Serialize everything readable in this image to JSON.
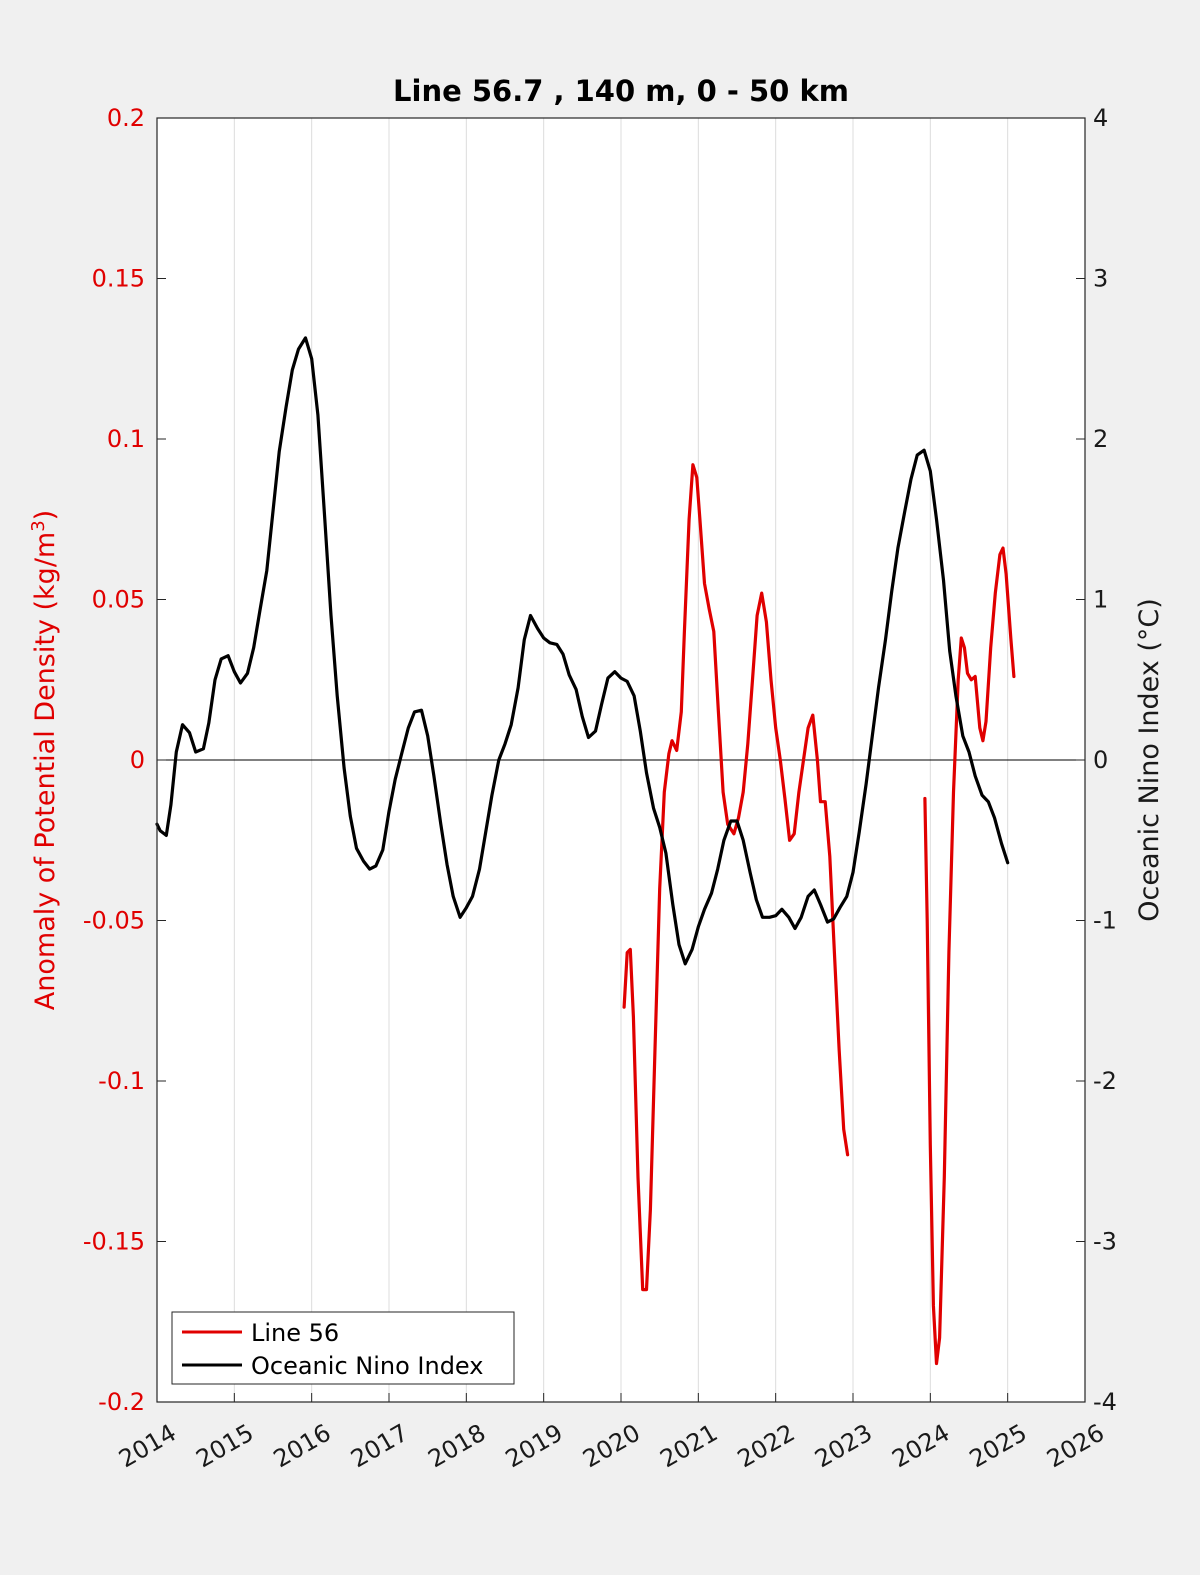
{
  "chart_data": {
    "type": "line",
    "title": "Line 56.7 , 140 m, 0 - 50 km",
    "ylabel_left": "Anomaly of Potential Density (kg/m3)",
    "ylabel_left_parts": {
      "pre": "Anomaly of Potential Density (kg/m",
      "sup": "3",
      "post": ")"
    },
    "ylabel_right": "Oceanic Nino Index (°C)",
    "xlabel": "",
    "xlim": [
      2014,
      2026
    ],
    "ylim_left": [
      -0.2,
      0.2
    ],
    "ylim_right": [
      -4,
      4
    ],
    "x_ticks": [
      "2014",
      "2015",
      "2016",
      "2017",
      "2018",
      "2019",
      "2020",
      "2021",
      "2022",
      "2023",
      "2024",
      "2025",
      "2026"
    ],
    "y_ticks_left": [
      "0.2",
      "0.15",
      "0.1",
      "0.05",
      "0",
      "-0.05",
      "-0.1",
      "-0.15",
      "-0.2"
    ],
    "y_ticks_right": [
      "4",
      "3",
      "2",
      "1",
      "0",
      "-1",
      "-2",
      "-3",
      "-4"
    ],
    "grid": "vertical",
    "zero_line": true,
    "legend_position": "bottom-left",
    "colors": {
      "density": "#e00000",
      "oni": "#000000",
      "left_axis": "#e00000"
    },
    "series": [
      {
        "name": "Line 56",
        "axis": "left",
        "segments": [
          [
            [
              2020.04,
              -0.077
            ],
            [
              2020.08,
              -0.06
            ],
            [
              2020.12,
              -0.059
            ],
            [
              2020.16,
              -0.08
            ],
            [
              2020.22,
              -0.13
            ],
            [
              2020.28,
              -0.165
            ],
            [
              2020.33,
              -0.165
            ],
            [
              2020.38,
              -0.14
            ],
            [
              2020.44,
              -0.09
            ],
            [
              2020.5,
              -0.04
            ],
            [
              2020.56,
              -0.01
            ],
            [
              2020.62,
              0.002
            ],
            [
              2020.66,
              0.006
            ],
            [
              2020.72,
              0.003
            ],
            [
              2020.78,
              0.015
            ],
            [
              2020.82,
              0.04
            ],
            [
              2020.88,
              0.075
            ],
            [
              2020.93,
              0.092
            ],
            [
              2020.98,
              0.088
            ],
            [
              2021.02,
              0.075
            ],
            [
              2021.08,
              0.055
            ],
            [
              2021.14,
              0.047
            ],
            [
              2021.2,
              0.04
            ],
            [
              2021.26,
              0.015
            ],
            [
              2021.32,
              -0.01
            ],
            [
              2021.38,
              -0.02
            ],
            [
              2021.46,
              -0.023
            ],
            [
              2021.52,
              -0.018
            ],
            [
              2021.58,
              -0.01
            ],
            [
              2021.64,
              0.005
            ],
            [
              2021.7,
              0.025
            ],
            [
              2021.76,
              0.045
            ],
            [
              2021.82,
              0.052
            ],
            [
              2021.88,
              0.043
            ],
            [
              2021.94,
              0.025
            ],
            [
              2022.0,
              0.01
            ],
            [
              2022.06,
              0.0
            ],
            [
              2022.12,
              -0.012
            ],
            [
              2022.18,
              -0.025
            ],
            [
              2022.24,
              -0.023
            ],
            [
              2022.3,
              -0.01
            ],
            [
              2022.36,
              0.0
            ],
            [
              2022.42,
              0.01
            ],
            [
              2022.48,
              0.014
            ],
            [
              2022.54,
              0.0
            ],
            [
              2022.58,
              -0.013
            ],
            [
              2022.64,
              -0.013
            ],
            [
              2022.7,
              -0.03
            ],
            [
              2022.76,
              -0.06
            ],
            [
              2022.82,
              -0.09
            ],
            [
              2022.88,
              -0.115
            ],
            [
              2022.93,
              -0.123
            ]
          ],
          [
            [
              2023.93,
              -0.012
            ],
            [
              2023.96,
              -0.05
            ],
            [
              2024.0,
              -0.12
            ],
            [
              2024.04,
              -0.17
            ],
            [
              2024.08,
              -0.188
            ],
            [
              2024.12,
              -0.18
            ],
            [
              2024.18,
              -0.13
            ],
            [
              2024.24,
              -0.06
            ],
            [
              2024.3,
              -0.01
            ],
            [
              2024.36,
              0.025
            ],
            [
              2024.4,
              0.038
            ],
            [
              2024.44,
              0.035
            ],
            [
              2024.48,
              0.027
            ],
            [
              2024.53,
              0.025
            ],
            [
              2024.58,
              0.026
            ],
            [
              2024.64,
              0.01
            ],
            [
              2024.68,
              0.006
            ],
            [
              2024.72,
              0.012
            ],
            [
              2024.78,
              0.035
            ],
            [
              2024.84,
              0.052
            ],
            [
              2024.9,
              0.064
            ],
            [
              2024.94,
              0.066
            ],
            [
              2024.98,
              0.058
            ],
            [
              2025.04,
              0.038
            ],
            [
              2025.08,
              0.026
            ]
          ]
        ]
      },
      {
        "name": "Oceanic Nino Index",
        "axis": "right",
        "points": [
          [
            2014.0,
            -0.4
          ],
          [
            2014.04,
            -0.44
          ],
          [
            2014.12,
            -0.47
          ],
          [
            2014.18,
            -0.28
          ],
          [
            2014.25,
            0.05
          ],
          [
            2014.33,
            0.22
          ],
          [
            2014.42,
            0.17
          ],
          [
            2014.5,
            0.05
          ],
          [
            2014.6,
            0.07
          ],
          [
            2014.67,
            0.23
          ],
          [
            2014.75,
            0.5
          ],
          [
            2014.83,
            0.63
          ],
          [
            2014.92,
            0.65
          ],
          [
            2015.0,
            0.55
          ],
          [
            2015.08,
            0.48
          ],
          [
            2015.17,
            0.54
          ],
          [
            2015.25,
            0.7
          ],
          [
            2015.33,
            0.93
          ],
          [
            2015.42,
            1.18
          ],
          [
            2015.5,
            1.55
          ],
          [
            2015.58,
            1.92
          ],
          [
            2015.67,
            2.2
          ],
          [
            2015.75,
            2.43
          ],
          [
            2015.83,
            2.56
          ],
          [
            2015.92,
            2.63
          ],
          [
            2016.0,
            2.5
          ],
          [
            2016.08,
            2.15
          ],
          [
            2016.17,
            1.5
          ],
          [
            2016.25,
            0.9
          ],
          [
            2016.33,
            0.4
          ],
          [
            2016.42,
            -0.05
          ],
          [
            2016.5,
            -0.35
          ],
          [
            2016.58,
            -0.55
          ],
          [
            2016.67,
            -0.63
          ],
          [
            2016.75,
            -0.68
          ],
          [
            2016.83,
            -0.66
          ],
          [
            2016.92,
            -0.56
          ],
          [
            2017.0,
            -0.32
          ],
          [
            2017.08,
            -0.12
          ],
          [
            2017.17,
            0.05
          ],
          [
            2017.25,
            0.2
          ],
          [
            2017.33,
            0.3
          ],
          [
            2017.42,
            0.31
          ],
          [
            2017.5,
            0.15
          ],
          [
            2017.58,
            -0.1
          ],
          [
            2017.67,
            -0.4
          ],
          [
            2017.75,
            -0.65
          ],
          [
            2017.83,
            -0.85
          ],
          [
            2017.92,
            -0.98
          ],
          [
            2018.0,
            -0.92
          ],
          [
            2018.08,
            -0.85
          ],
          [
            2018.17,
            -0.68
          ],
          [
            2018.25,
            -0.45
          ],
          [
            2018.33,
            -0.22
          ],
          [
            2018.42,
            0.0
          ],
          [
            2018.5,
            0.1
          ],
          [
            2018.58,
            0.22
          ],
          [
            2018.67,
            0.45
          ],
          [
            2018.75,
            0.75
          ],
          [
            2018.83,
            0.9
          ],
          [
            2018.92,
            0.82
          ],
          [
            2019.0,
            0.76
          ],
          [
            2019.08,
            0.73
          ],
          [
            2019.17,
            0.72
          ],
          [
            2019.25,
            0.66
          ],
          [
            2019.33,
            0.53
          ],
          [
            2019.42,
            0.44
          ],
          [
            2019.5,
            0.27
          ],
          [
            2019.58,
            0.14
          ],
          [
            2019.67,
            0.18
          ],
          [
            2019.75,
            0.35
          ],
          [
            2019.83,
            0.51
          ],
          [
            2019.92,
            0.55
          ],
          [
            2020.0,
            0.51
          ],
          [
            2020.08,
            0.49
          ],
          [
            2020.17,
            0.4
          ],
          [
            2020.25,
            0.18
          ],
          [
            2020.33,
            -0.08
          ],
          [
            2020.42,
            -0.3
          ],
          [
            2020.5,
            -0.42
          ],
          [
            2020.58,
            -0.58
          ],
          [
            2020.67,
            -0.9
          ],
          [
            2020.75,
            -1.15
          ],
          [
            2020.83,
            -1.27
          ],
          [
            2020.92,
            -1.18
          ],
          [
            2021.0,
            -1.04
          ],
          [
            2021.08,
            -0.93
          ],
          [
            2021.17,
            -0.83
          ],
          [
            2021.25,
            -0.68
          ],
          [
            2021.33,
            -0.5
          ],
          [
            2021.42,
            -0.38
          ],
          [
            2021.5,
            -0.38
          ],
          [
            2021.58,
            -0.5
          ],
          [
            2021.67,
            -0.7
          ],
          [
            2021.75,
            -0.87
          ],
          [
            2021.83,
            -0.98
          ],
          [
            2021.92,
            -0.98
          ],
          [
            2022.0,
            -0.97
          ],
          [
            2022.08,
            -0.93
          ],
          [
            2022.17,
            -0.98
          ],
          [
            2022.25,
            -1.05
          ],
          [
            2022.33,
            -0.98
          ],
          [
            2022.42,
            -0.85
          ],
          [
            2022.5,
            -0.81
          ],
          [
            2022.58,
            -0.9
          ],
          [
            2022.67,
            -1.01
          ],
          [
            2022.75,
            -0.99
          ],
          [
            2022.83,
            -0.92
          ],
          [
            2022.92,
            -0.85
          ],
          [
            2023.0,
            -0.7
          ],
          [
            2023.08,
            -0.45
          ],
          [
            2023.17,
            -0.15
          ],
          [
            2023.25,
            0.15
          ],
          [
            2023.33,
            0.45
          ],
          [
            2023.42,
            0.75
          ],
          [
            2023.5,
            1.05
          ],
          [
            2023.58,
            1.32
          ],
          [
            2023.67,
            1.55
          ],
          [
            2023.75,
            1.75
          ],
          [
            2023.83,
            1.9
          ],
          [
            2023.92,
            1.93
          ],
          [
            2024.0,
            1.8
          ],
          [
            2024.08,
            1.5
          ],
          [
            2024.17,
            1.12
          ],
          [
            2024.25,
            0.68
          ],
          [
            2024.33,
            0.4
          ],
          [
            2024.42,
            0.15
          ],
          [
            2024.5,
            0.05
          ],
          [
            2024.58,
            -0.1
          ],
          [
            2024.67,
            -0.22
          ],
          [
            2024.75,
            -0.26
          ],
          [
            2024.83,
            -0.36
          ],
          [
            2024.92,
            -0.52
          ],
          [
            2025.0,
            -0.64
          ]
        ]
      }
    ]
  }
}
